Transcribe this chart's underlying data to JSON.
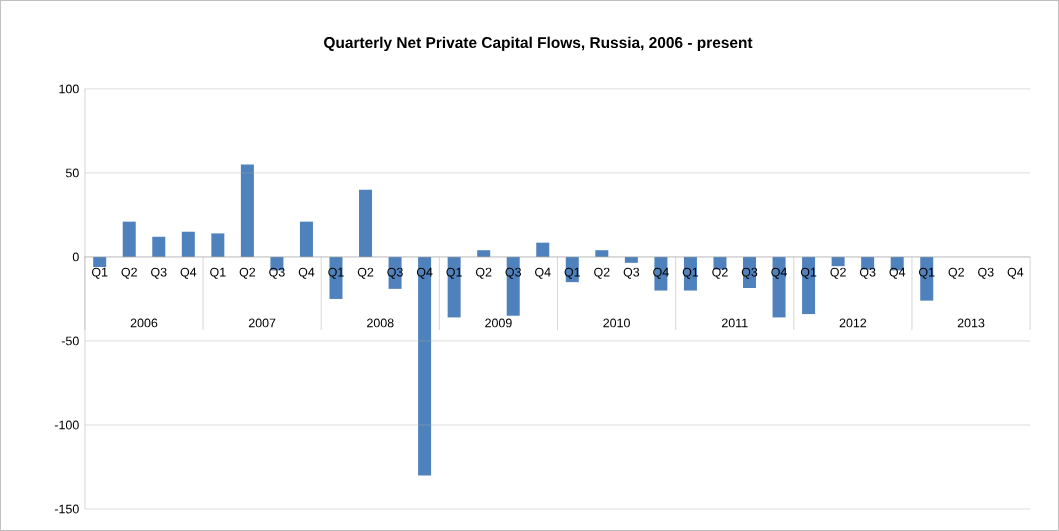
{
  "chart_data": {
    "type": "bar",
    "title": "Quarterly Net Private Capital Flows, Russia, 2006 - present",
    "categories": [
      "Q1",
      "Q2",
      "Q3",
      "Q4",
      "Q1",
      "Q2",
      "Q3",
      "Q4",
      "Q1",
      "Q2",
      "Q3",
      "Q4",
      "Q1",
      "Q2",
      "Q3",
      "Q4",
      "Q1",
      "Q2",
      "Q3",
      "Q4",
      "Q1",
      "Q2",
      "Q3",
      "Q4",
      "Q1",
      "Q2",
      "Q3",
      "Q4",
      "Q1",
      "Q2",
      "Q3",
      "Q4"
    ],
    "values": [
      -6,
      21,
      12,
      15,
      14,
      55,
      -8,
      21,
      -25,
      40,
      -19,
      -130,
      -36,
      4,
      -35,
      8.5,
      -15,
      4,
      -3.5,
      -20,
      -20,
      -7.5,
      -18.5,
      -36,
      -34,
      -5.5,
      -7.5,
      -8,
      -26,
      null,
      null,
      null
    ],
    "color": "#4f81bd",
    "annotations": [
      "2006",
      "2007",
      "2008",
      "2009",
      "2010",
      "2011",
      "2012",
      "2013"
    ],
    "ylim": [
      -150,
      100
    ],
    "yticks": [
      -150,
      -100,
      -50,
      0,
      50,
      100
    ],
    "grid": "y"
  }
}
